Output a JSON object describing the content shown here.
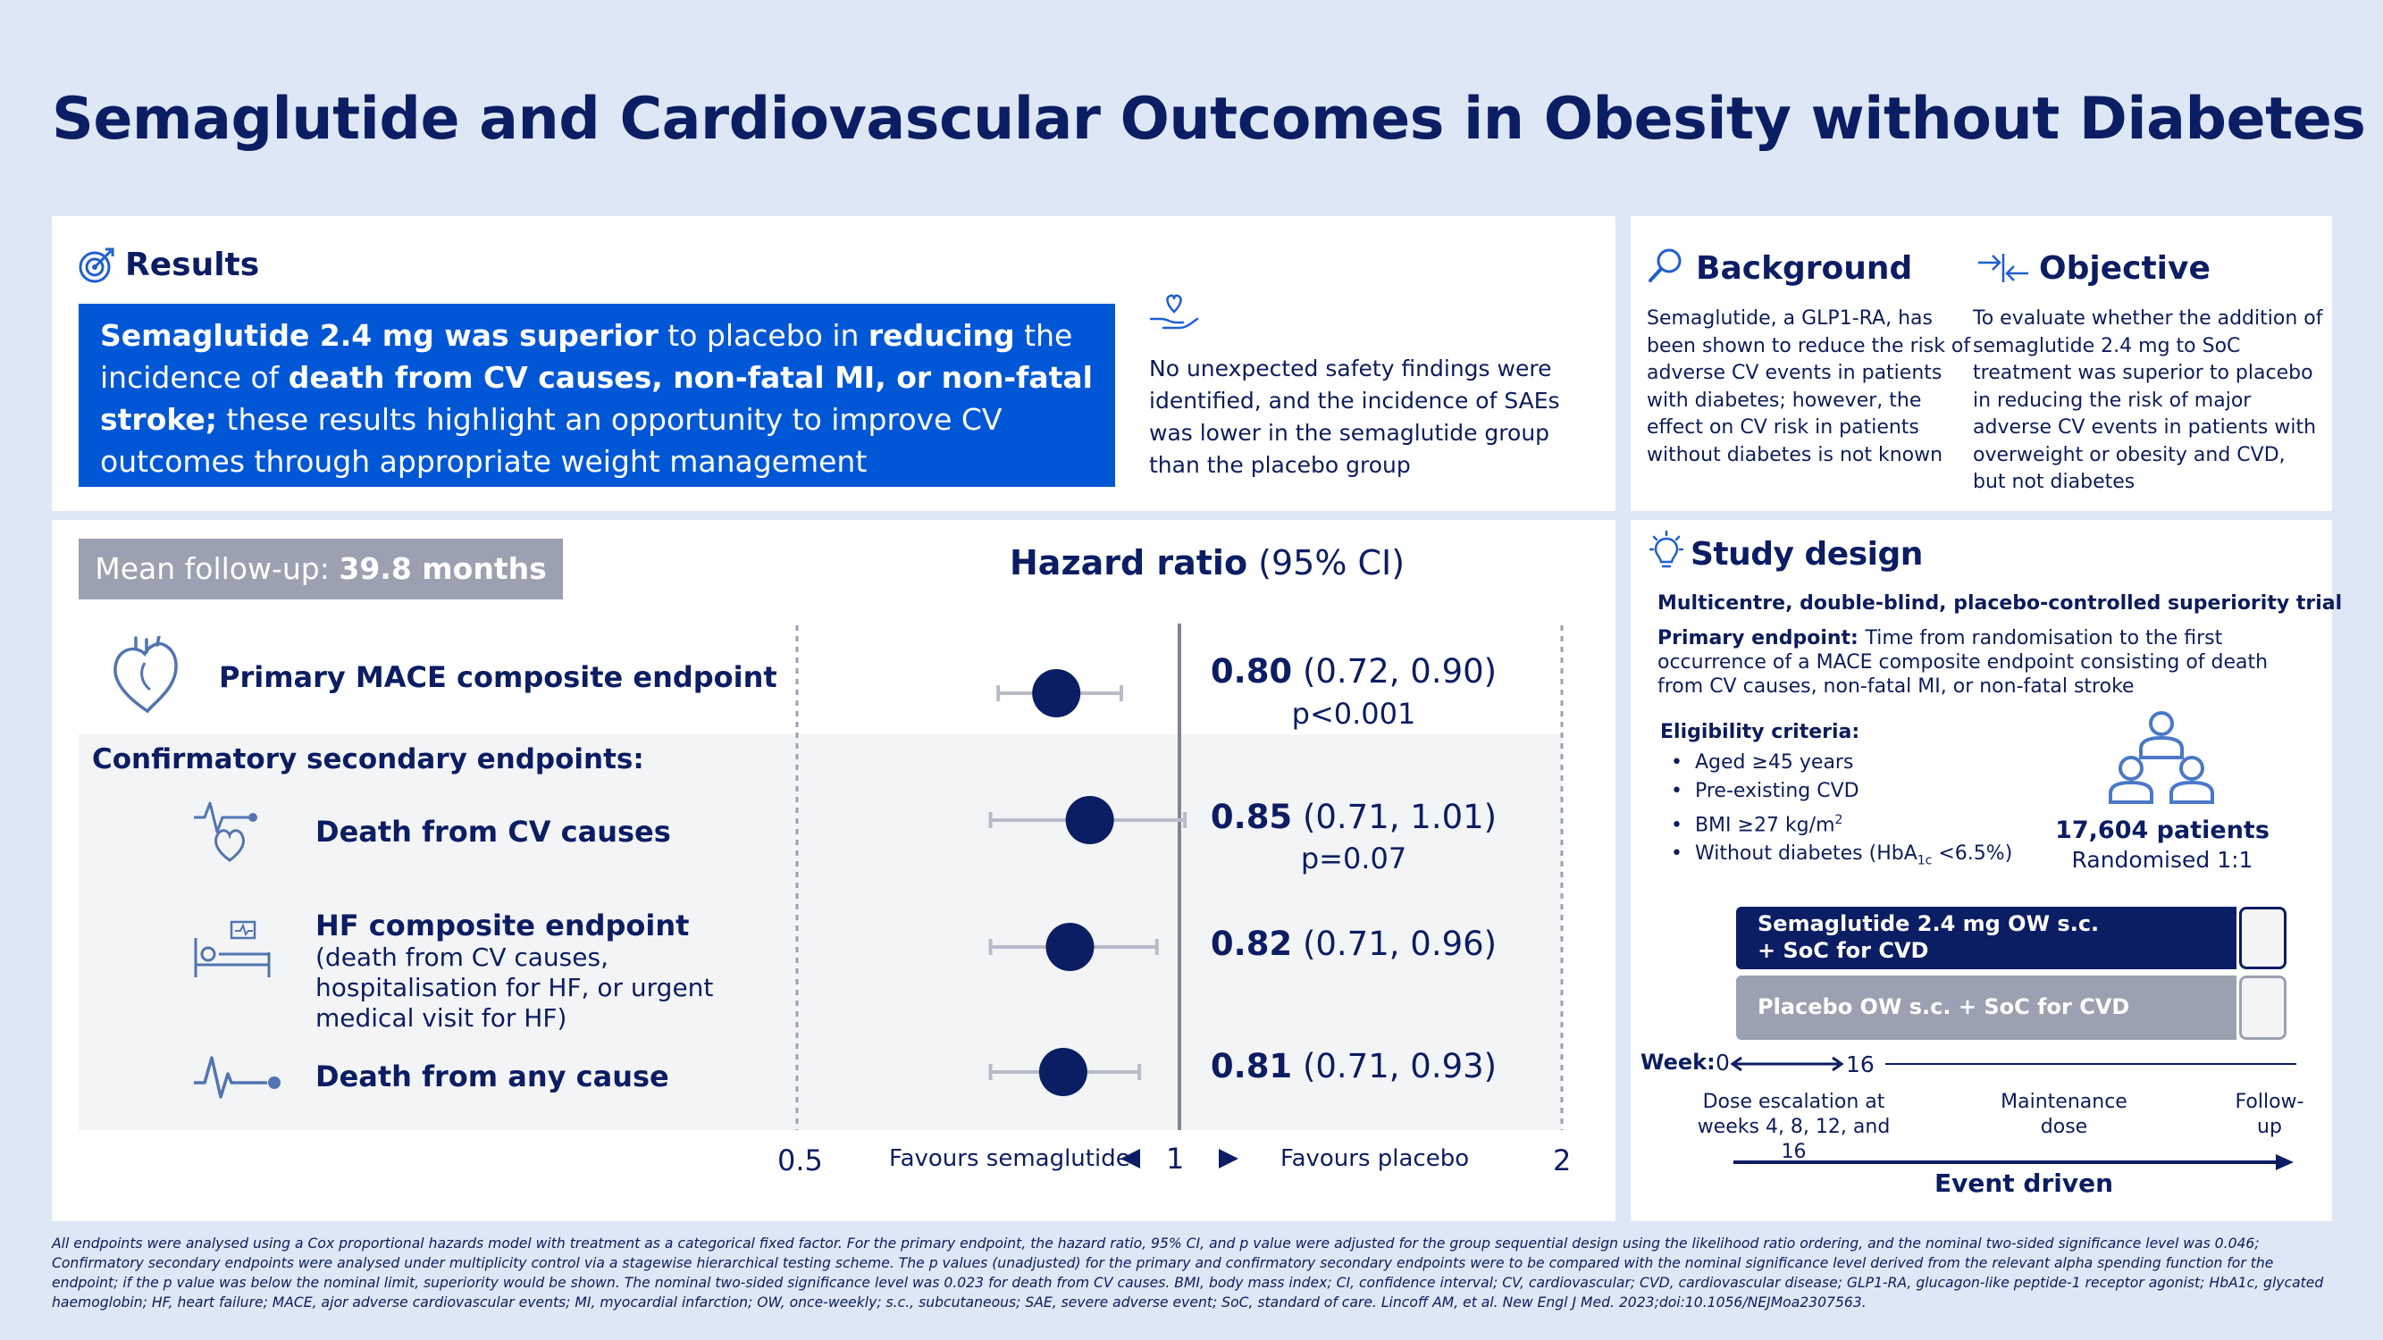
{
  "title": "Semaglutide and Cardiovascular Outcomes in Obesity without Diabetes",
  "results": {
    "heading": "Results",
    "highlight": {
      "p1": "Semaglutide 2.4 mg was superior",
      "p2": " to placebo in ",
      "p3": "reducing",
      "p4": " the incidence of ",
      "p5": "death from CV causes, non-fatal MI, or non-fatal stroke;",
      "p6": " these results highlight an opportunity to improve CV outcomes through appropriate weight management"
    },
    "safety": "No unexpected safety findings were identified, and the incidence of SAEs was lower in the semaglutide group than the placebo group"
  },
  "background": {
    "heading": "Background",
    "text": "Semaglutide, a GLP1-RA, has been shown to reduce the risk of adverse CV events in patients with diabetes; however, the effect on CV risk in patients without diabetes is not known"
  },
  "objective": {
    "heading": "Objective",
    "text": "To evaluate whether the addition of semaglutide 2.4 mg to SoC treatment was superior to placebo in reducing the risk of major adverse CV events in patients with overweight or obesity and CVD, but not diabetes"
  },
  "forest": {
    "followup_label": "Mean follow-up: ",
    "followup_value": "39.8 months",
    "hr_title_bold": "Hazard ratio",
    "hr_title_rest": " (95% CI)",
    "secondary_heading": "Confirmatory secondary endpoints:",
    "fav_left": "Favours semaglutide",
    "fav_right": "Favours placebo",
    "endpoints": [
      {
        "label": "Primary MACE composite endpoint",
        "sub": "",
        "hr_bold": "0.80",
        "ci_text": " (0.72, 0.90)",
        "p": "p<0.001"
      },
      {
        "label": "Death from CV causes",
        "sub": "",
        "hr_bold": "0.85",
        "ci_text": " (0.71, 1.01)",
        "p": "p=0.07"
      },
      {
        "label": "HF composite endpoint",
        "sub": "(death from CV causes, hospitalisation for HF, or urgent medical visit for HF)",
        "hr_bold": "0.82",
        "ci_text": " (0.71, 0.96)",
        "p": ""
      },
      {
        "label": "Death from any cause",
        "sub": "",
        "hr_bold": "0.81",
        "ci_text": " (0.71, 0.93)",
        "p": ""
      }
    ]
  },
  "chart_data": {
    "type": "scatter",
    "subtype": "forest-plot",
    "title": "Hazard ratio (95% CI)",
    "x_scale": "log",
    "xlim": [
      0.5,
      2
    ],
    "x_ticks": [
      "0.5",
      "1",
      "2"
    ],
    "reference_line": 1,
    "series": [
      {
        "name": "Primary MACE composite endpoint",
        "hr": 0.8,
        "lo": 0.72,
        "hi": 0.9
      },
      {
        "name": "Death from CV causes",
        "hr": 0.85,
        "lo": 0.71,
        "hi": 1.01
      },
      {
        "name": "HF composite endpoint",
        "hr": 0.82,
        "lo": 0.71,
        "hi": 0.96
      },
      {
        "name": "Death from any cause",
        "hr": 0.81,
        "lo": 0.71,
        "hi": 0.93
      }
    ],
    "colors": {
      "point": "#0b1d63",
      "ci": "#b7bcc8",
      "ref_line": "#7f8591"
    }
  },
  "study_design": {
    "heading": "Study design",
    "trial": "Multicentre, double-blind, placebo-controlled superiority trial",
    "primary_label": "Primary endpoint: ",
    "primary_text": "Time from randomisation to the first occurrence of a MACE composite endpoint consisting of death from CV causes, non-fatal MI, or non-fatal stroke",
    "eligibility_heading": "Eligibility criteria:",
    "eligibility": [
      "Aged ≥45 years",
      "Pre-existing CVD",
      "BMI ≥27 kg/m",
      "Without diabetes (HbA"
    ],
    "bmi_sup": "2",
    "hba_sub": "1c",
    "hba_tail": " <6.5%)",
    "patients": "17,604 patients",
    "randomised": "Randomised 1:1",
    "arm1_line1": "Semaglutide 2.4 mg OW s.c.",
    "arm1_line2": "+ SoC for CVD",
    "arm2": "Placebo OW s.c. + SoC for CVD",
    "week_label": "Week:",
    "week0": "0",
    "week16": "16",
    "phase1": "Dose escalation at weeks 4, 8, 12, and 16",
    "phase2": "Maintenance dose",
    "phase3": "Follow-up",
    "event_driven": "Event driven"
  },
  "footnote": "All endpoints were analysed using a Cox proportional hazards model with treatment as a categorical fixed factor. For the primary endpoint, the hazard ratio, 95% CI, and p value were adjusted for the group sequential design using the likelihood ratio ordering, and the nominal two-sided significance level was 0.046; Confirmatory secondary endpoints were analysed under multiplicity control via a stagewise hierarchical testing scheme. The p values (unadjusted) for the primary and confirmatory secondary endpoints were to be compared with the nominal significance level derived from the relevant alpha spending function for the endpoint; if the p value was below the nominal limit, superiority would be shown. The nominal two-sided significance level was 0.023 for death from CV causes. BMI, body mass index; CI, confidence interval; CV, cardiovascular; CVD, cardiovascular disease; GLP1-RA, glucagon-like peptide-1 receptor agonist; HbA1c, glycated haemoglobin; HF, heart failure; MACE, ajor adverse cardiovascular events; MI, myocardial infarction; OW, once-weekly; s.c., subcutaneous; SAE, severe adverse event; SoC, standard of care. Lincoff AM, et al. New Engl J Med. 2023;doi:10.1056/NEJMoa2307563."
}
